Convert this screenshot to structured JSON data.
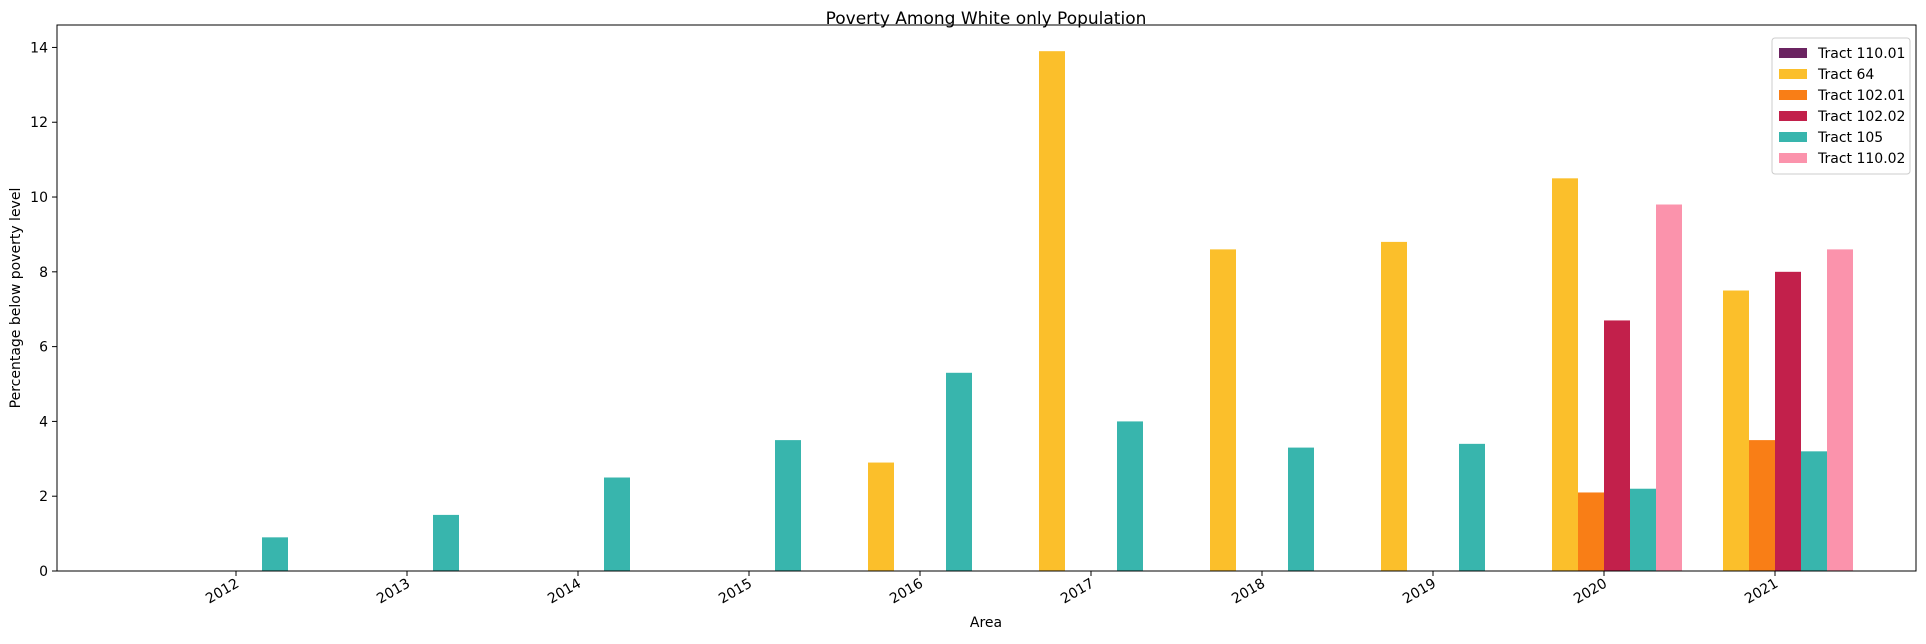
{
  "chart_data": {
    "type": "bar",
    "title": "Poverty Among White only Population",
    "xlabel": "Area",
    "ylabel": "Percentage below poverty level",
    "categories": [
      "2012",
      "2013",
      "2014",
      "2015",
      "2016",
      "2017",
      "2018",
      "2019",
      "2020",
      "2021"
    ],
    "ylim": [
      0,
      14.6
    ],
    "yticks": [
      0,
      2,
      4,
      6,
      8,
      10,
      12,
      14
    ],
    "ytick_labels": [
      "0",
      "2",
      "4",
      "6",
      "8",
      "10",
      "12",
      "14"
    ],
    "grid": false,
    "legend_position": "top-right",
    "series": [
      {
        "name": "Tract 110.01",
        "color": "#6b2461",
        "values": [
          0,
          0,
          0,
          0,
          0,
          0,
          0,
          0,
          0,
          0
        ]
      },
      {
        "name": "Tract 64",
        "color": "#fbbf2b",
        "values": [
          0,
          0,
          0,
          0,
          2.9,
          13.9,
          8.6,
          8.8,
          10.5,
          7.5
        ]
      },
      {
        "name": "Tract 102.01",
        "color": "#f97e16",
        "values": [
          0,
          0,
          0,
          0,
          0,
          0,
          0,
          0,
          2.1,
          3.5
        ]
      },
      {
        "name": "Tract 102.02",
        "color": "#c2204b",
        "values": [
          0,
          0,
          0,
          0,
          0,
          0,
          0,
          0,
          6.7,
          8.0
        ]
      },
      {
        "name": "Tract 105",
        "color": "#38b5ad",
        "values": [
          0.9,
          1.5,
          2.5,
          3.5,
          5.3,
          4.0,
          3.3,
          3.4,
          2.2,
          3.2
        ]
      },
      {
        "name": "Tract 110.02",
        "color": "#fb93ac",
        "values": [
          0,
          0,
          0,
          0,
          0,
          0,
          0,
          0,
          9.8,
          8.6
        ]
      }
    ]
  }
}
